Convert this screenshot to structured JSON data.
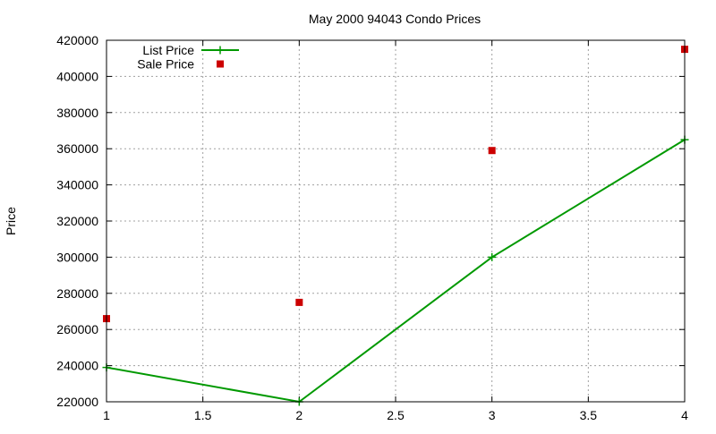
{
  "chart_data": {
    "type": "line",
    "title": "May 2000 94043 Condo Prices",
    "xlabel": "",
    "ylabel": "Price",
    "xlim": [
      1,
      4
    ],
    "ylim": [
      220000,
      420000
    ],
    "x_ticks": [
      "1",
      "1.5",
      "2",
      "2.5",
      "3",
      "3.5",
      "4"
    ],
    "y_ticks": [
      "220000",
      "240000",
      "260000",
      "280000",
      "300000",
      "320000",
      "340000",
      "360000",
      "380000",
      "400000",
      "420000"
    ],
    "grid": true,
    "legend_position": "top-left",
    "series": [
      {
        "name": "List Price",
        "style": "linespoints",
        "marker": "plus",
        "color": "#009900",
        "x": [
          1,
          2,
          3,
          4
        ],
        "y": [
          239000,
          220000,
          300000,
          365000
        ]
      },
      {
        "name": "Sale Price",
        "style": "points",
        "marker": "square",
        "color": "#cc0000",
        "x": [
          1,
          2,
          3,
          4
        ],
        "y": [
          266000,
          275000,
          359000,
          415000
        ]
      }
    ]
  }
}
